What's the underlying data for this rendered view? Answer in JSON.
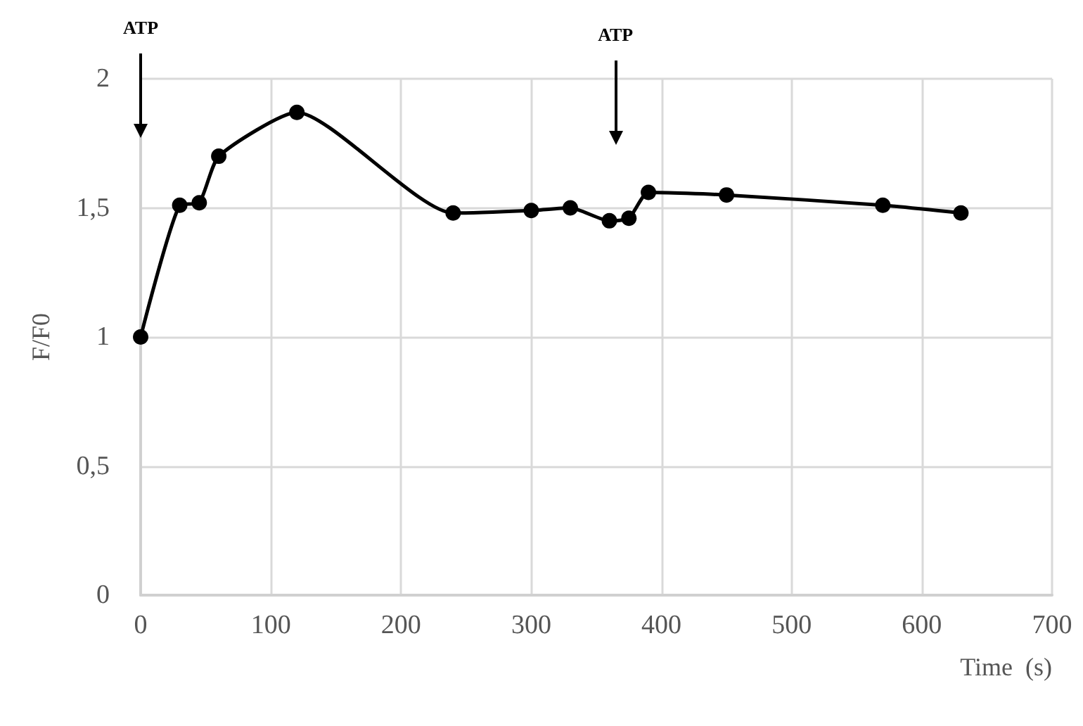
{
  "chart_data": {
    "type": "line",
    "xlabel": "Time  (s)",
    "ylabel": "F/F0",
    "x": [
      0,
      30,
      45,
      60,
      120,
      240,
      300,
      330,
      360,
      375,
      390,
      450,
      570,
      630
    ],
    "series": [
      {
        "color": "#000000",
        "values": [
          1.0,
          1.51,
          1.52,
          1.7,
          1.87,
          1.48,
          1.49,
          1.5,
          1.45,
          1.46,
          1.56,
          1.55,
          1.51,
          1.48
        ]
      }
    ],
    "xlim": [
      0,
      700
    ],
    "xticks": [
      0,
      100,
      200,
      300,
      400,
      500,
      600,
      700
    ],
    "ylim": [
      0,
      2
    ],
    "yticks": [
      0,
      {
        "value": 0.5,
        "label": "0,5"
      },
      1,
      {
        "value": 1.5,
        "label": "1,5"
      },
      2
    ],
    "grid": true,
    "marker": "circle",
    "line_style": "solid",
    "annotations": [
      "ATP",
      "ATP"
    ]
  }
}
